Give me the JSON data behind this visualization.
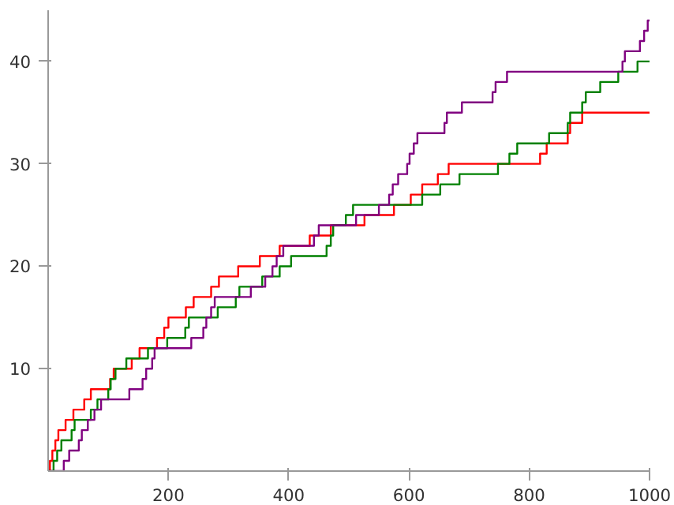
{
  "chart_data": {
    "type": "step",
    "xlim": [
      0,
      1000
    ],
    "ylim": [
      0,
      45
    ],
    "xticks": [
      200,
      400,
      600,
      800,
      1000
    ],
    "yticks": [
      10,
      20,
      30,
      40
    ],
    "grid": false,
    "series": [
      {
        "color": "#ff0000",
        "x": [
          0,
          3,
          7,
          12,
          17,
          29,
          42,
          60,
          71,
          103,
          109,
          139,
          152,
          181,
          193,
          200,
          229,
          242,
          271,
          284,
          316,
          352,
          385,
          435,
          470,
          526,
          575,
          603,
          622,
          648,
          666,
          818,
          829,
          864,
          868,
          888,
          1000
        ],
        "values": [
          0,
          1,
          2,
          3,
          4,
          5,
          6,
          7,
          8,
          9,
          10,
          11,
          12,
          13,
          14,
          15,
          16,
          17,
          18,
          19,
          20,
          21,
          22,
          23,
          24,
          25,
          26,
          27,
          28,
          29,
          30,
          31,
          32,
          33,
          34,
          35,
          35
        ]
      },
      {
        "color": "#008000",
        "x": [
          0,
          9,
          15,
          22,
          39,
          44,
          71,
          82,
          100,
          104,
          112,
          130,
          166,
          198,
          228,
          234,
          282,
          312,
          318,
          356,
          385,
          404,
          463,
          470,
          474,
          495,
          507,
          622,
          652,
          684,
          748,
          767,
          780,
          833,
          864,
          868,
          888,
          894,
          918,
          948,
          980,
          1000
        ],
        "values": [
          0,
          1,
          2,
          3,
          4,
          5,
          6,
          7,
          8,
          9,
          10,
          11,
          12,
          13,
          14,
          15,
          16,
          17,
          18,
          19,
          20,
          21,
          22,
          23,
          24,
          25,
          26,
          27,
          28,
          29,
          30,
          31,
          32,
          33,
          34,
          35,
          36,
          37,
          38,
          39,
          40,
          40
        ]
      },
      {
        "color": "#800080",
        "x": [
          0,
          26,
          35,
          51,
          56,
          66,
          77,
          88,
          135,
          157,
          163,
          173,
          177,
          238,
          258,
          263,
          271,
          277,
          337,
          361,
          373,
          380,
          391,
          442,
          450,
          512,
          550,
          567,
          573,
          582,
          597,
          601,
          608,
          614,
          659,
          663,
          688,
          739,
          744,
          763,
          955,
          959,
          984,
          991,
          997,
          1000
        ],
        "values": [
          0,
          1,
          2,
          3,
          4,
          5,
          6,
          7,
          8,
          9,
          10,
          11,
          12,
          13,
          14,
          15,
          16,
          17,
          18,
          19,
          20,
          21,
          22,
          23,
          24,
          25,
          26,
          27,
          28,
          29,
          30,
          31,
          32,
          33,
          34,
          35,
          36,
          37,
          38,
          39,
          40,
          41,
          42,
          43,
          44,
          44
        ]
      }
    ]
  }
}
